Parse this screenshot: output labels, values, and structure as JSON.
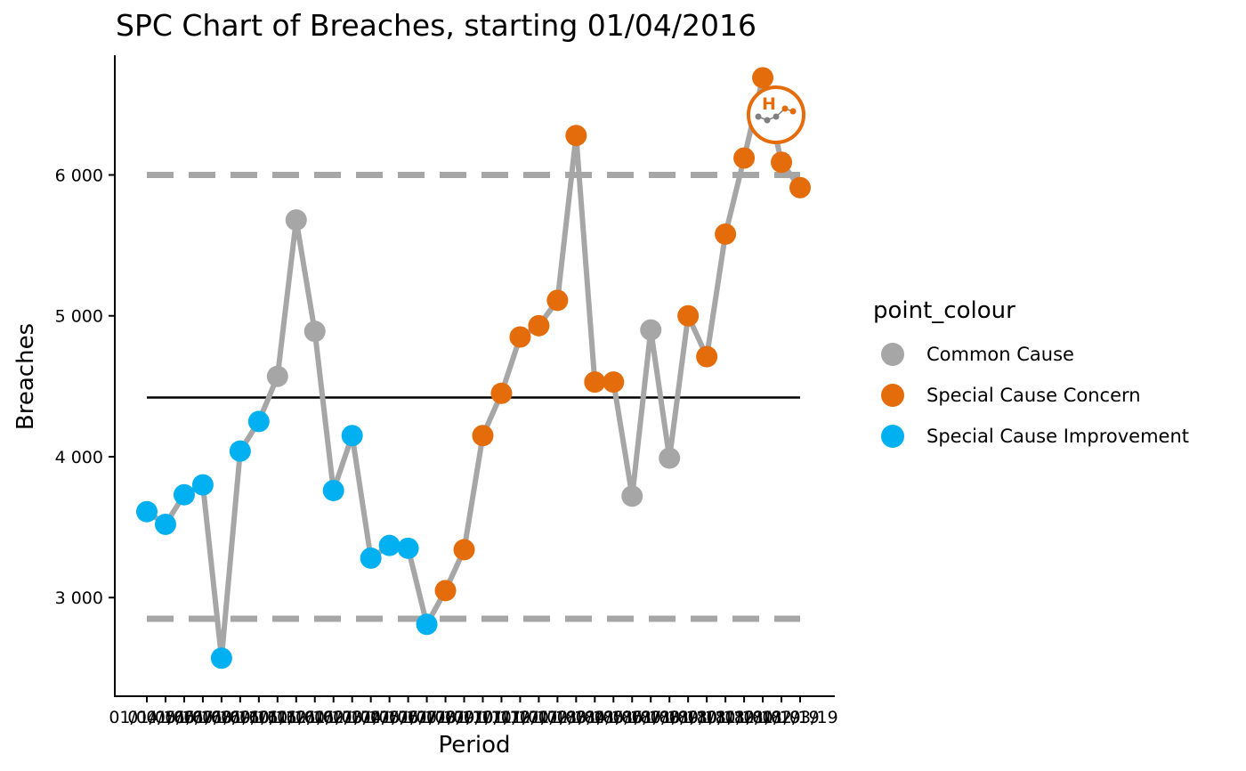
{
  "chart_data": {
    "type": "line",
    "title": "SPC Chart of Breaches, starting 01/04/2016",
    "xlabel": "Period",
    "ylabel": "Breaches",
    "y_ticks": [
      3000,
      4000,
      5000,
      6000
    ],
    "y_tick_labels": [
      "3 000",
      "4 000",
      "5 000",
      "6 000"
    ],
    "ylim": [
      2300,
      6850
    ],
    "grid": false,
    "x_tick_labels": [
      "01/04/16",
      "01/05/16",
      "01/06/16",
      "01/07/16",
      "01/08/16",
      "01/09/16",
      "01/10/16",
      "01/11/16",
      "01/12/16",
      "01/01/17",
      "01/02/17",
      "01/03/17",
      "01/04/17",
      "01/05/17",
      "01/06/17",
      "01/07/17",
      "01/08/17",
      "01/09/17",
      "01/10/17",
      "01/11/17",
      "01/12/17",
      "01/01/18",
      "01/02/18",
      "01/03/18",
      "01/04/18",
      "01/05/18",
      "01/06/18",
      "01/07/18",
      "01/08/18",
      "01/09/18",
      "01/10/18",
      "01/11/18",
      "01/12/18",
      "01/01/19",
      "01/02/19",
      "01/03/19"
    ],
    "values": [
      3610,
      3520,
      3730,
      3800,
      2570,
      4040,
      4250,
      4570,
      5680,
      4890,
      3760,
      4150,
      3280,
      3370,
      3350,
      2810,
      3050,
      3340,
      4150,
      4450,
      4850,
      4930,
      5110,
      6280,
      4530,
      4530,
      3720,
      4900,
      3990,
      5000,
      4710,
      5580,
      6120,
      6690,
      6090,
      5910
    ],
    "point_colour": [
      "Special Cause Improvement",
      "Special Cause Improvement",
      "Special Cause Improvement",
      "Special Cause Improvement",
      "Special Cause Improvement",
      "Special Cause Improvement",
      "Special Cause Improvement",
      "Common Cause",
      "Common Cause",
      "Common Cause",
      "Special Cause Improvement",
      "Special Cause Improvement",
      "Special Cause Improvement",
      "Special Cause Improvement",
      "Special Cause Improvement",
      "Special Cause Improvement",
      "Special Cause Concern",
      "Special Cause Concern",
      "Special Cause Concern",
      "Special Cause Concern",
      "Special Cause Concern",
      "Special Cause Concern",
      "Special Cause Concern",
      "Special Cause Concern",
      "Special Cause Concern",
      "Special Cause Concern",
      "Common Cause",
      "Common Cause",
      "Common Cause",
      "Special Cause Concern",
      "Special Cause Concern",
      "Special Cause Concern",
      "Special Cause Concern",
      "Special Cause Concern",
      "Special Cause Concern",
      "Special Cause Concern"
    ],
    "mean": 4420,
    "upper_limit": 6000,
    "lower_limit": 2850,
    "legend": {
      "title": "point_colour",
      "position": "right",
      "entries": [
        {
          "label": "Common Cause",
          "color": "#a6a6a6"
        },
        {
          "label": "Special Cause Concern",
          "color": "#e46c0a"
        },
        {
          "label": "Special Cause Improvement",
          "color": "#00b0f0"
        }
      ]
    },
    "line_color": "#a6a6a6",
    "mean_color": "#000000",
    "limit_color": "#a6a6a6",
    "badge": {
      "icon": "variation-high-concern-icon",
      "letter": "H",
      "color": "#e46c0a"
    }
  }
}
